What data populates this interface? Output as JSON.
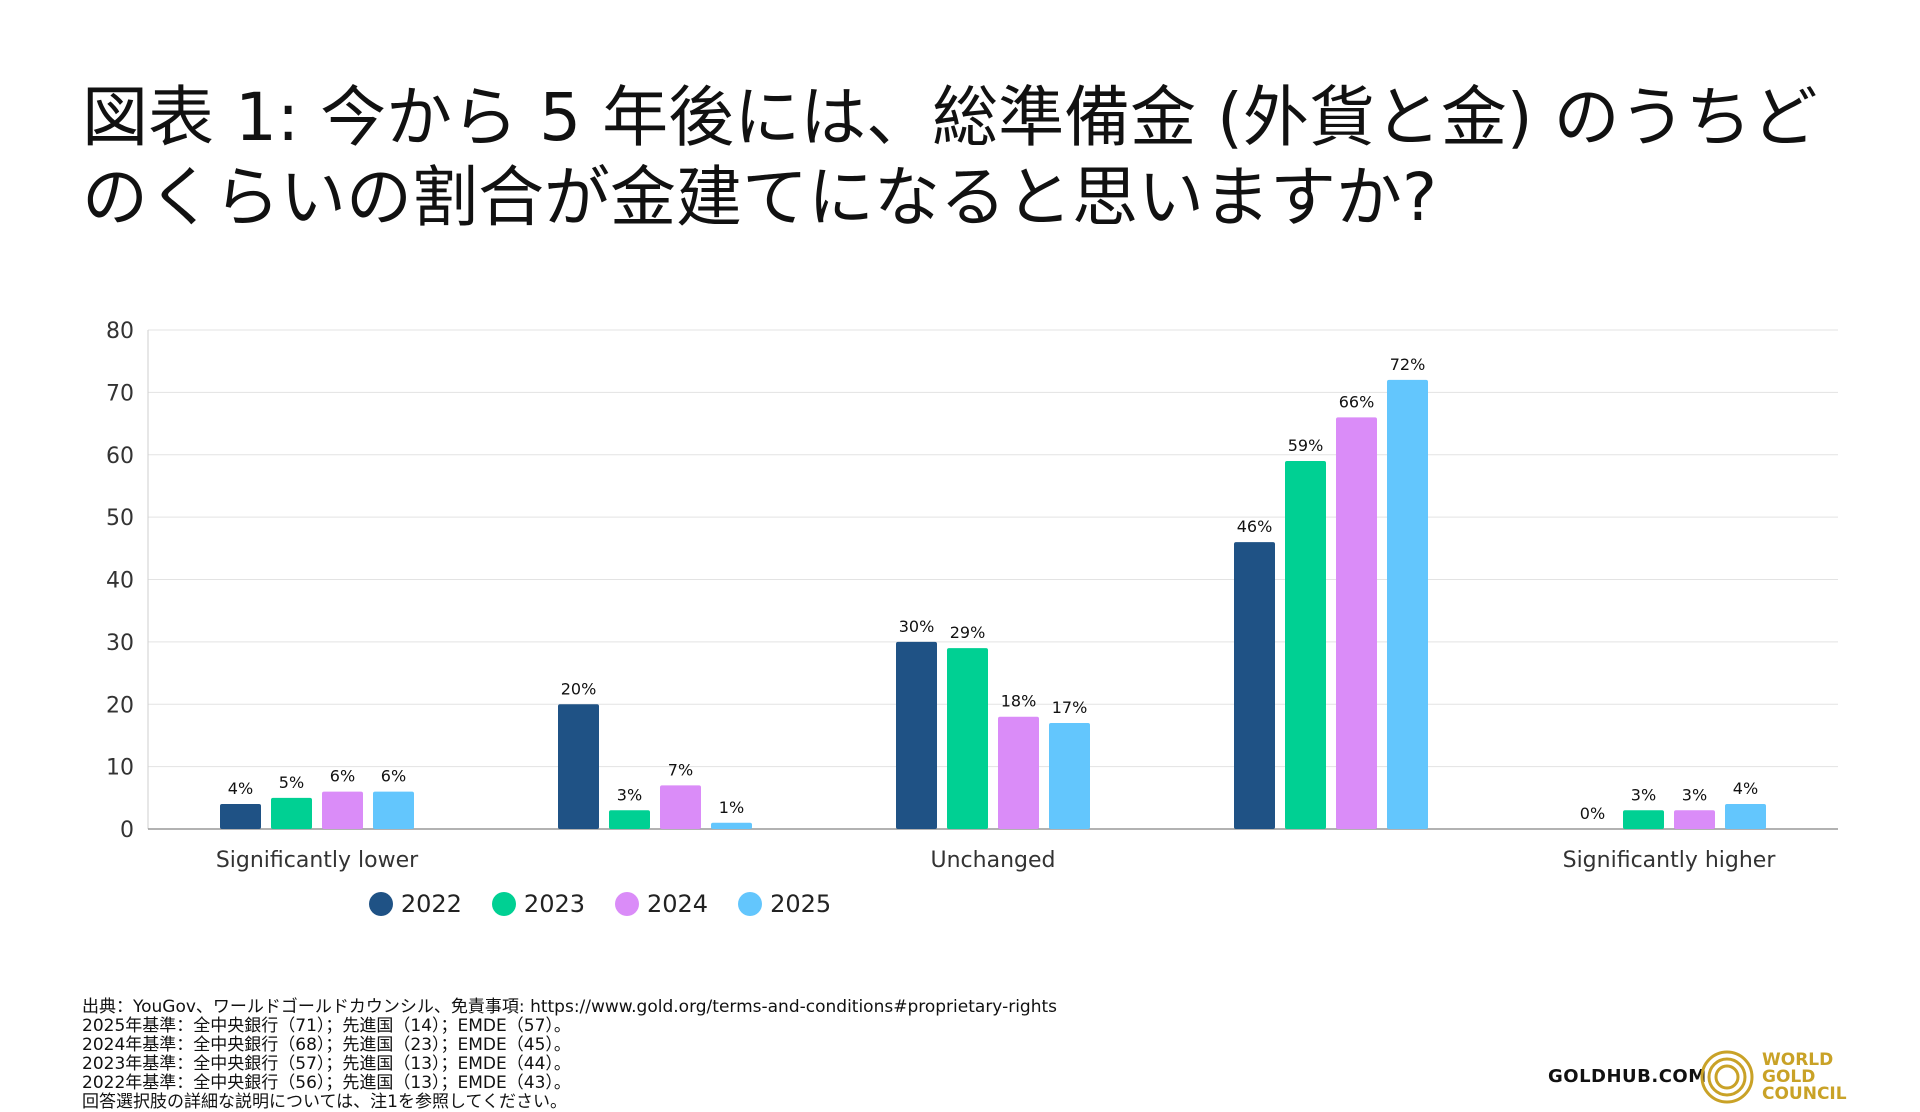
{
  "title": "図表 1: 今から 5 年後には、総準備金 (外貨と金) のうちどのくらいの割合が金建てになると思いますか?",
  "chart_data": {
    "type": "bar",
    "categories": [
      "Significantly lower",
      "",
      "Unchanged",
      "",
      "Significantly higher"
    ],
    "series": [
      {
        "name": "2022",
        "color": "#1f5285",
        "values": [
          4,
          20,
          30,
          46,
          0
        ]
      },
      {
        "name": "2023",
        "color": "#00d093",
        "values": [
          5,
          3,
          29,
          59,
          3
        ]
      },
      {
        "name": "2024",
        "color": "#da8cf8",
        "values": [
          6,
          7,
          18,
          66,
          3
        ]
      },
      {
        "name": "2025",
        "color": "#63c6fd",
        "values": [
          6,
          1,
          17,
          72,
          4
        ]
      }
    ],
    "data_labels": [
      [
        "4%",
        "20%",
        "30%",
        "46%",
        "0%"
      ],
      [
        "5%",
        "3%",
        "29%",
        "59%",
        "3%"
      ],
      [
        "6%",
        "7%",
        "18%",
        "66%",
        "3%"
      ],
      [
        "6%",
        "1%",
        "17%",
        "72%",
        "4%"
      ]
    ],
    "ylim": [
      0,
      80
    ],
    "yticks": [
      0,
      10,
      20,
      30,
      40,
      50,
      60,
      70,
      80
    ],
    "grid": true,
    "legend": "bottom-center"
  },
  "notes": [
    "出典：YouGov、ワールドゴールドカウンシル、免責事項: https://www.gold.org/terms-and-conditions#proprietary-rights",
    "2025年基準：全中央銀行（71）；先進国（14）；EMDE（57）。",
    "2024年基準：全中央銀行（68）；先進国（23）；EMDE（45）。",
    "2023年基準：全中央銀行（57）；先進国（13）；EMDE（44）。",
    "2022年基準：全中央銀行（56）；先進国（13）；EMDE（43）。",
    "回答選択肢の詳細な説明については、注1を参照してください。"
  ],
  "footer": {
    "goldhub": "GOLDHUB.COM",
    "wgc_lines": [
      "WORLD",
      "GOLD",
      "COUNCIL"
    ],
    "gold_color": "#c9a227"
  }
}
